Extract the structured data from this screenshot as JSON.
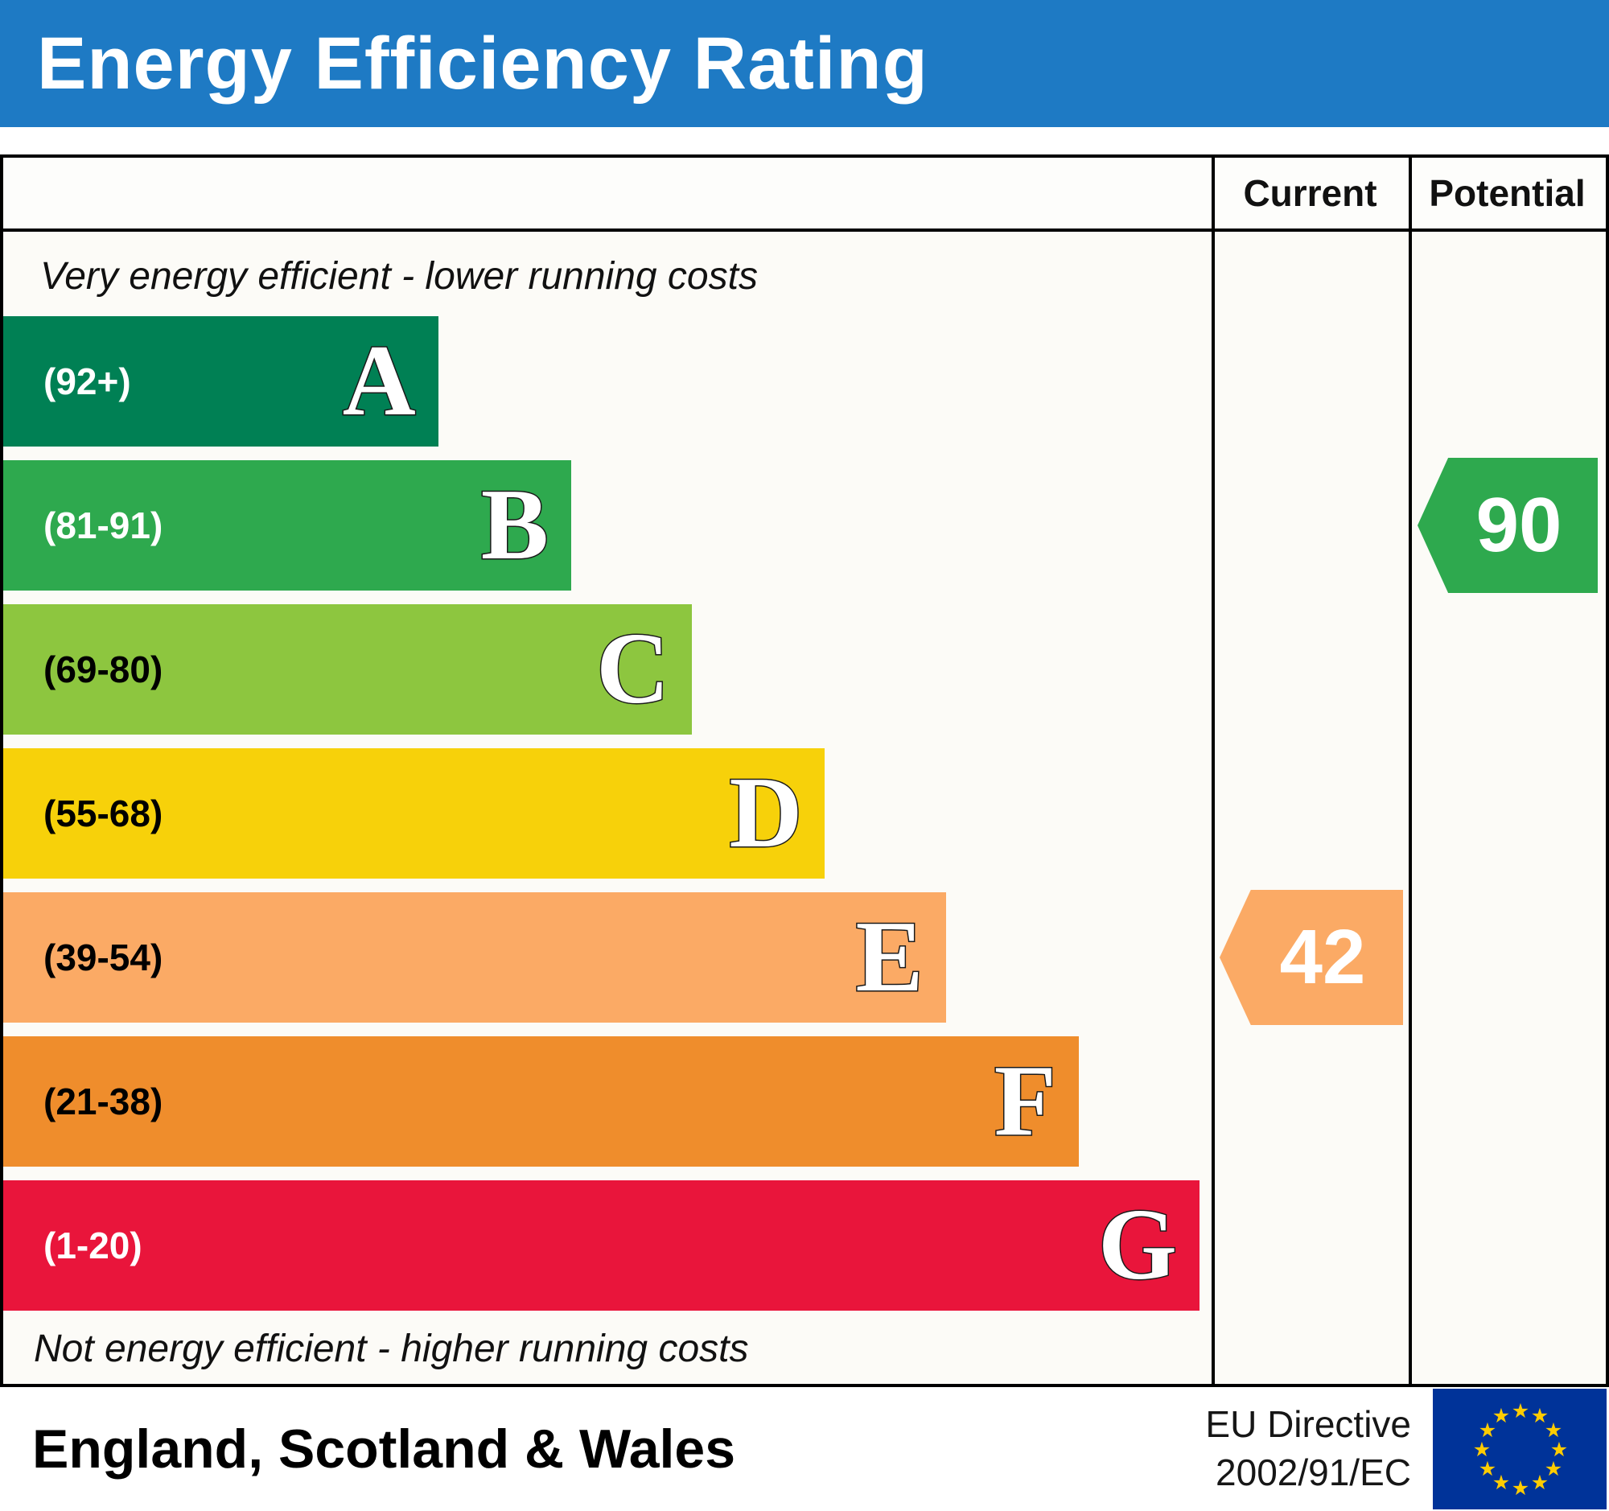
{
  "title": "Energy Efficiency Rating",
  "header": {
    "current": "Current",
    "potential": "Potential"
  },
  "top_note": "Very energy efficient - lower running costs",
  "bottom_note": "Not energy efficient - higher running costs",
  "footer": {
    "region": "England, Scotland & Wales",
    "directive_line1": "EU Directive",
    "directive_line2": "2002/91/EC",
    "flag_icon": "eu-flag-icon"
  },
  "chart_data": {
    "type": "bar",
    "title": "Energy Efficiency Rating",
    "bands": [
      {
        "letter": "A",
        "range": "(92+)",
        "min": 92,
        "max": 100,
        "color": "#008054",
        "range_color": "#ffffff",
        "width_pct": 36
      },
      {
        "letter": "B",
        "range": "(81-91)",
        "min": 81,
        "max": 91,
        "color": "#2ea94e",
        "range_color": "#ffffff",
        "width_pct": 47
      },
      {
        "letter": "C",
        "range": "(69-80)",
        "min": 69,
        "max": 80,
        "color": "#8dc63f",
        "range_color": "#000000",
        "width_pct": 57
      },
      {
        "letter": "D",
        "range": "(55-68)",
        "min": 55,
        "max": 68,
        "color": "#f7d10a",
        "range_color": "#000000",
        "width_pct": 68
      },
      {
        "letter": "E",
        "range": "(39-54)",
        "min": 39,
        "max": 54,
        "color": "#fbaa65",
        "range_color": "#000000",
        "width_pct": 78
      },
      {
        "letter": "F",
        "range": "(21-38)",
        "min": 21,
        "max": 38,
        "color": "#ef8d2c",
        "range_color": "#000000",
        "width_pct": 89
      },
      {
        "letter": "G",
        "range": "(1-20)",
        "min": 1,
        "max": 20,
        "color": "#e9153b",
        "range_color": "#ffffff",
        "width_pct": 99
      }
    ],
    "current": {
      "label": "Current",
      "value": 42,
      "band": "E",
      "color": "#fbaa65"
    },
    "potential": {
      "label": "Potential",
      "value": 90,
      "band": "B",
      "color": "#2ea94e"
    }
  }
}
